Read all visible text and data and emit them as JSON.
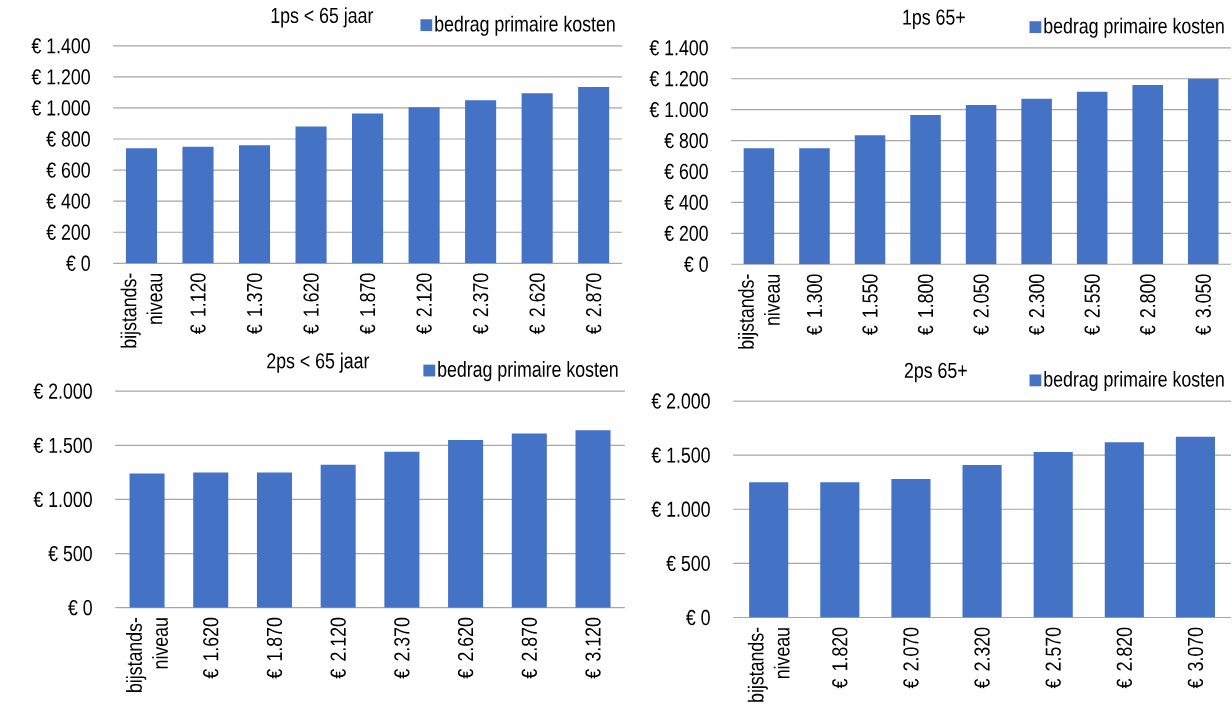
{
  "chart_data": [
    {
      "type": "bar",
      "title": "1ps < 65 jaar",
      "categories": [
        "bijstands-niveau",
        "€ 1.120",
        "€ 1.370",
        "€ 1.620",
        "€ 1.870",
        "€ 2.120",
        "€ 2.370",
        "€ 2.620",
        "€ 2.870"
      ],
      "series": [
        {
          "name": "bedrag primaire kosten",
          "color": "#4472c4",
          "values": [
            740,
            750,
            760,
            880,
            965,
            1005,
            1050,
            1095,
            1135
          ]
        }
      ],
      "ylim": [
        0,
        1400
      ],
      "yticks": [
        {
          "value": 0,
          "label": "€ 0"
        },
        {
          "value": 200,
          "label": "€ 200"
        },
        {
          "value": 400,
          "label": "€ 400"
        },
        {
          "value": 600,
          "label": "€ 600"
        },
        {
          "value": 800,
          "label": "€ 800"
        },
        {
          "value": 1000,
          "label": "€ 1.000"
        },
        {
          "value": 1200,
          "label": "€ 1.200"
        },
        {
          "value": 1400,
          "label": "€ 1.400"
        }
      ],
      "grid": "y",
      "legend": "top right"
    },
    {
      "type": "bar",
      "title": "1ps 65+",
      "categories": [
        "bijstands-niveau",
        "€ 1.300",
        "€ 1.550",
        "€ 1.800",
        "€ 2.050",
        "€ 2.300",
        "€ 2.550",
        "€ 2.800",
        "€ 3.050"
      ],
      "series": [
        {
          "name": "bedrag primaire kosten",
          "color": "#4472c4",
          "values": [
            750,
            750,
            835,
            965,
            1030,
            1070,
            1115,
            1160,
            1200
          ]
        }
      ],
      "ylim": [
        0,
        1400
      ],
      "yticks": [
        {
          "value": 0,
          "label": "€ 0"
        },
        {
          "value": 200,
          "label": "€ 200"
        },
        {
          "value": 400,
          "label": "€ 400"
        },
        {
          "value": 600,
          "label": "€ 600"
        },
        {
          "value": 800,
          "label": "€ 800"
        },
        {
          "value": 1000,
          "label": "€ 1.000"
        },
        {
          "value": 1200,
          "label": "€ 1.200"
        },
        {
          "value": 1400,
          "label": "€ 1.400"
        }
      ],
      "grid": "y",
      "legend": "top right"
    },
    {
      "type": "bar",
      "title": "2ps < 65 jaar",
      "categories": [
        "bijstands-niveau",
        "€ 1.620",
        "€ 1.870",
        "€ 2.120",
        "€ 2.370",
        "€ 2.620",
        "€ 2.870",
        "€ 3.120"
      ],
      "series": [
        {
          "name": "bedrag primaire kosten",
          "color": "#4472c4",
          "values": [
            1240,
            1250,
            1250,
            1320,
            1440,
            1550,
            1610,
            1640
          ]
        }
      ],
      "ylim": [
        0,
        2000
      ],
      "yticks": [
        {
          "value": 0,
          "label": "€ 0"
        },
        {
          "value": 500,
          "label": "€ 500"
        },
        {
          "value": 1000,
          "label": "€ 1.000"
        },
        {
          "value": 1500,
          "label": "€ 1.500"
        },
        {
          "value": 2000,
          "label": "€ 2.000"
        }
      ],
      "grid": "y",
      "legend": "top right"
    },
    {
      "type": "bar",
      "title": "2ps 65+",
      "categories": [
        "bijstands-niveau",
        "€ 1.820",
        "€ 2.070",
        "€ 2.320",
        "€ 2.570",
        "€ 2.820",
        "€ 3.070"
      ],
      "series": [
        {
          "name": "bedrag primaire kosten",
          "color": "#4472c4",
          "values": [
            1250,
            1250,
            1280,
            1410,
            1530,
            1620,
            1670
          ]
        }
      ],
      "ylim": [
        0,
        2000
      ],
      "yticks": [
        {
          "value": 0,
          "label": "€ 0"
        },
        {
          "value": 500,
          "label": "€ 500"
        },
        {
          "value": 1000,
          "label": "€ 1.000"
        },
        {
          "value": 1500,
          "label": "€ 1.500"
        },
        {
          "value": 2000,
          "label": "€ 2.000"
        }
      ],
      "grid": "y",
      "legend": "top right"
    }
  ]
}
